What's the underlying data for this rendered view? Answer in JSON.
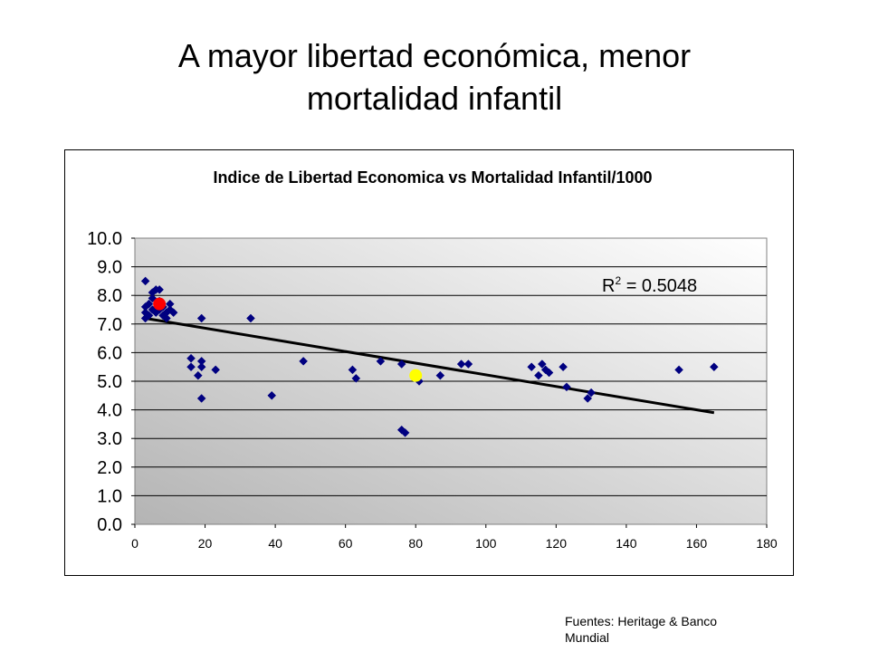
{
  "slide": {
    "title_line1": "A mayor libertad económica, menor",
    "title_line2": "mortalidad infantil",
    "source_line1": "Fuentes: Heritage & Banco",
    "source_line2": "Mundial"
  },
  "chart_data": {
    "type": "scatter",
    "title": "Indice de Libertad Economica vs Mortalidad Infantil/1000",
    "xlabel": "",
    "ylabel": "",
    "xlim": [
      0,
      180
    ],
    "ylim": [
      0,
      10
    ],
    "xticks": [
      "0",
      "20",
      "40",
      "60",
      "80",
      "100",
      "120",
      "140",
      "160",
      "180"
    ],
    "yticks": [
      "0.0",
      "1.0",
      "2.0",
      "3.0",
      "4.0",
      "5.0",
      "6.0",
      "7.0",
      "8.0",
      "9.0",
      "10.0"
    ],
    "grid": "horizontal",
    "legend": "none",
    "annotation": {
      "prefix": "R",
      "superscript": "2",
      "suffix": " = 0.5048"
    },
    "trendline": {
      "x": [
        3,
        165
      ],
      "y": [
        7.2,
        3.9
      ],
      "color": "#000000"
    },
    "colors": {
      "points": "#000080",
      "highlight_red": "#ff0000",
      "highlight_yellow": "#ffff00",
      "gradient_dark": "#b4b4b4",
      "gradient_light": "#ffffff"
    },
    "series": [
      {
        "marker": "diamond",
        "color": "#000080",
        "points": [
          [
            3,
            8.5
          ],
          [
            3,
            7.2
          ],
          [
            3,
            7.4
          ],
          [
            3,
            7.6
          ],
          [
            4,
            7.3
          ],
          [
            4,
            7.7
          ],
          [
            5,
            7.5
          ],
          [
            5,
            7.9
          ],
          [
            5,
            8.1
          ],
          [
            6,
            7.4
          ],
          [
            6,
            8.2
          ],
          [
            7,
            7.5
          ],
          [
            7,
            7.8
          ],
          [
            7,
            8.2
          ],
          [
            8,
            7.3
          ],
          [
            8,
            7.6
          ],
          [
            9,
            7.2
          ],
          [
            9,
            7.4
          ],
          [
            10,
            7.5
          ],
          [
            10,
            7.7
          ],
          [
            11,
            7.4
          ],
          [
            16,
            5.5
          ],
          [
            16,
            5.8
          ],
          [
            18,
            5.2
          ],
          [
            19,
            4.4
          ],
          [
            19,
            5.5
          ],
          [
            19,
            5.7
          ],
          [
            19,
            7.2
          ],
          [
            23,
            5.4
          ],
          [
            33,
            7.2
          ],
          [
            39,
            4.5
          ],
          [
            48,
            5.7
          ],
          [
            62,
            5.4
          ],
          [
            63,
            5.1
          ],
          [
            70,
            5.7
          ],
          [
            76,
            3.3
          ],
          [
            77,
            3.2
          ],
          [
            76,
            5.6
          ],
          [
            81,
            5.0
          ],
          [
            87,
            5.2
          ],
          [
            93,
            5.6
          ],
          [
            95,
            5.6
          ],
          [
            113,
            5.5
          ],
          [
            115,
            5.2
          ],
          [
            116,
            5.6
          ],
          [
            117,
            5.4
          ],
          [
            118,
            5.3
          ],
          [
            122,
            5.5
          ],
          [
            123,
            4.8
          ],
          [
            129,
            4.4
          ],
          [
            130,
            4.6
          ],
          [
            155,
            5.4
          ],
          [
            165,
            5.5
          ]
        ]
      },
      {
        "marker": "circle",
        "color": "#ff0000",
        "points": [
          [
            7,
            7.7
          ]
        ]
      },
      {
        "marker": "circle",
        "color": "#ffff00",
        "points": [
          [
            80,
            5.2
          ]
        ]
      }
    ]
  }
}
